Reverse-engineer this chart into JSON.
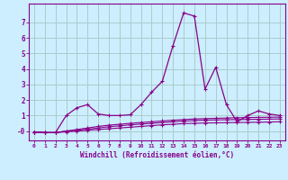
{
  "x": [
    0,
    1,
    2,
    3,
    4,
    5,
    6,
    7,
    8,
    9,
    10,
    11,
    12,
    13,
    14,
    15,
    16,
    17,
    18,
    19,
    20,
    21,
    22,
    23
  ],
  "line1": [
    -0.05,
    -0.1,
    -0.1,
    1.0,
    1.5,
    1.7,
    1.1,
    1.0,
    1.0,
    1.05,
    1.7,
    2.5,
    3.2,
    5.5,
    7.6,
    7.4,
    2.7,
    4.1,
    1.7,
    0.6,
    1.0,
    1.3,
    1.1,
    1.0
  ],
  "line2": [
    -0.05,
    -0.1,
    -0.1,
    0.0,
    0.1,
    0.2,
    0.3,
    0.38,
    0.44,
    0.5,
    0.55,
    0.6,
    0.65,
    0.7,
    0.74,
    0.78,
    0.8,
    0.82,
    0.84,
    0.86,
    0.87,
    0.88,
    0.89,
    0.9
  ],
  "line3": [
    -0.05,
    -0.1,
    -0.1,
    0.0,
    0.05,
    0.12,
    0.2,
    0.28,
    0.34,
    0.4,
    0.45,
    0.5,
    0.55,
    0.6,
    0.64,
    0.68,
    0.7,
    0.72,
    0.73,
    0.74,
    0.75,
    0.76,
    0.77,
    0.78
  ],
  "line4": [
    -0.05,
    -0.1,
    -0.1,
    -0.05,
    0.0,
    0.05,
    0.1,
    0.15,
    0.2,
    0.25,
    0.3,
    0.35,
    0.4,
    0.44,
    0.48,
    0.5,
    0.52,
    0.53,
    0.54,
    0.55,
    0.56,
    0.57,
    0.58,
    0.6
  ],
  "color": "#880088",
  "bg_color": "#cceeff",
  "grid_color": "#aacccc",
  "xlabel": "Windchill (Refroidissement éolien,°C)",
  "xlim": [
    -0.5,
    23.5
  ],
  "ylim": [
    -0.6,
    8.2
  ],
  "yticks": [
    0,
    1,
    2,
    3,
    4,
    5,
    6,
    7
  ],
  "ytick_labels": [
    "-0",
    "1",
    "2",
    "3",
    "4",
    "5",
    "6",
    "7"
  ],
  "xticks": [
    0,
    1,
    2,
    3,
    4,
    5,
    6,
    7,
    8,
    9,
    10,
    11,
    12,
    13,
    14,
    15,
    16,
    17,
    18,
    19,
    20,
    21,
    22,
    23
  ]
}
